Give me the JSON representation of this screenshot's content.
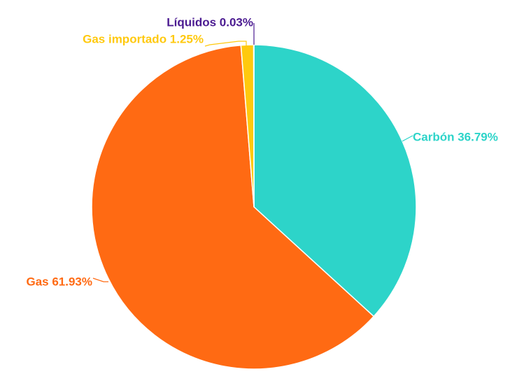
{
  "chart_data": {
    "type": "pie",
    "title": "",
    "slices": [
      {
        "name": "Carbón",
        "value": 36.79,
        "label": "Carbón 36.79%",
        "color": "#2dd4c9"
      },
      {
        "name": "Gas",
        "value": 61.93,
        "label": "Gas 61.93%",
        "color": "#ff6a13"
      },
      {
        "name": "Gas importado",
        "value": 1.25,
        "label": "Gas importado 1.25%",
        "color": "#ffc90e"
      },
      {
        "name": "Líquidos",
        "value": 0.03,
        "label": "Líquidos 0.03%",
        "color": "#4b1b91"
      }
    ],
    "start_angle": "top",
    "direction": "clockwise",
    "legend": "none"
  }
}
